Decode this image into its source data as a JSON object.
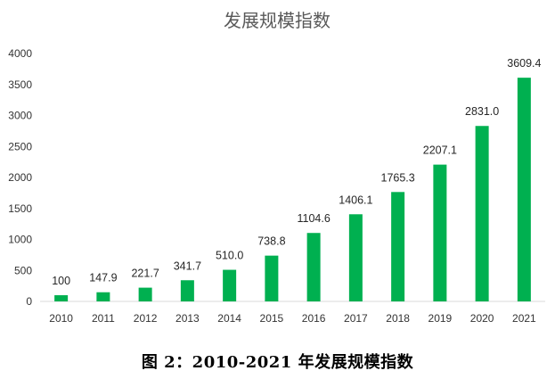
{
  "chart_data": {
    "type": "bar",
    "title": "发展规模指数",
    "categories": [
      "2010",
      "2011",
      "2012",
      "2013",
      "2014",
      "2015",
      "2016",
      "2017",
      "2018",
      "2019",
      "2020",
      "2021"
    ],
    "values": [
      100,
      147.9,
      221.7,
      341.7,
      510.0,
      738.8,
      1104.6,
      1406.1,
      1765.3,
      2207.1,
      2831.0,
      3609.4
    ],
    "value_labels": [
      "100",
      "147.9",
      "221.7",
      "341.7",
      "510.0",
      "738.8",
      "1104.6",
      "1406.1",
      "1765.3",
      "2207.1",
      "2831.0",
      "3609.4"
    ],
    "ylim": [
      0,
      4000
    ],
    "yticks": [
      "0",
      "500",
      "1000",
      "1500",
      "2000",
      "2500",
      "3000",
      "3500",
      "4000"
    ],
    "grid": false,
    "legend": "none",
    "bar_color": "#00b050"
  },
  "caption": "图 2：2010-2021 年发展规模指数"
}
